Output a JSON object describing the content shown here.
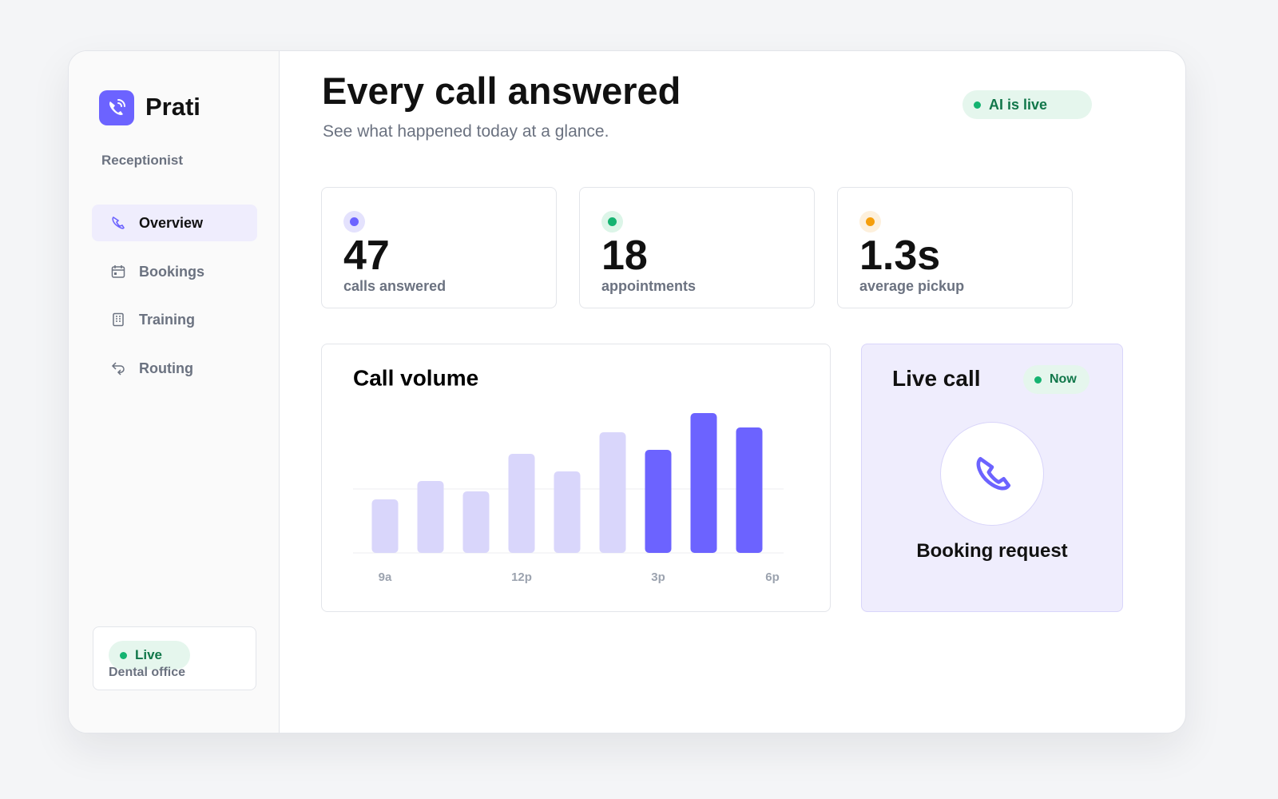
{
  "sidebar": {
    "brand": "Prati",
    "section": "Receptionist",
    "nav": [
      "Overview",
      "Bookings",
      "Training",
      "Routing"
    ],
    "status": {
      "badge": "Live",
      "label": "Dental office"
    }
  },
  "header": {
    "title": "Every call answered",
    "subtitle": "See what happened today at a glance.",
    "status": "AI is live"
  },
  "stats": [
    {
      "value": "47",
      "label": "calls answered"
    },
    {
      "value": "18",
      "label": "appointments"
    },
    {
      "value": "1.3s",
      "label": "average pickup"
    }
  ],
  "chart_data": {
    "type": "bar",
    "title": "Call volume",
    "categories": [
      "9a",
      null,
      null,
      "12p",
      null,
      null,
      "3p",
      null,
      null
    ],
    "end_label": "6p",
    "values": [
      67,
      90,
      77,
      124,
      102,
      151,
      129,
      175,
      157
    ],
    "colors": [
      "#d9d6fb",
      "#d9d6fb",
      "#d9d6fb",
      "#d9d6fb",
      "#d9d6fb",
      "#d9d6fb",
      "#6c63ff",
      "#6c63ff",
      "#6c63ff"
    ],
    "ylim": [
      0,
      180
    ],
    "gridlines": [
      0,
      80
    ]
  },
  "live_call": {
    "title": "Live call",
    "badge": "Now",
    "caption": "Booking request"
  }
}
